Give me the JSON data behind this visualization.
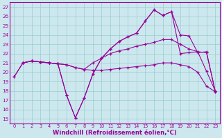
{
  "bg_color": "#cce8ee",
  "line_color": "#990099",
  "grid_color": "#99cccc",
  "xlabel": "Windchill (Refroidissement éolien,°C)",
  "ylabel_ticks": [
    15,
    16,
    17,
    18,
    19,
    20,
    21,
    22,
    23,
    24,
    25,
    26,
    27
  ],
  "xticks": [
    0,
    1,
    2,
    3,
    4,
    5,
    6,
    7,
    8,
    9,
    10,
    11,
    12,
    13,
    14,
    15,
    16,
    17,
    18,
    19,
    20,
    21,
    22,
    23
  ],
  "xlim": [
    -0.5,
    23.5
  ],
  "ylim": [
    14.5,
    27.5
  ],
  "lines": [
    {
      "x": [
        0,
        1,
        2,
        3,
        4,
        5,
        6,
        7,
        8,
        9,
        10,
        11,
        12,
        13,
        14,
        15,
        16,
        17,
        18,
        19,
        20,
        21,
        22,
        23
      ],
      "y": [
        19.5,
        21.0,
        21.2,
        21.1,
        21.0,
        20.9,
        20.8,
        20.5,
        20.3,
        20.2,
        20.2,
        20.3,
        20.4,
        20.5,
        20.6,
        20.7,
        20.8,
        21.0,
        21.0,
        20.8,
        20.6,
        20.0,
        18.5,
        17.9
      ]
    },
    {
      "x": [
        1,
        2,
        3,
        4,
        5,
        6,
        7,
        8,
        9,
        10,
        11,
        12,
        13,
        14,
        15,
        16,
        17,
        18,
        19,
        20,
        21,
        22,
        23
      ],
      "y": [
        21.0,
        21.2,
        21.1,
        21.0,
        20.9,
        20.8,
        20.5,
        20.3,
        21.0,
        21.5,
        22.0,
        22.3,
        22.5,
        22.8,
        23.0,
        23.2,
        23.5,
        23.5,
        23.0,
        22.5,
        22.2,
        22.1,
        18.0
      ]
    },
    {
      "x": [
        1,
        2,
        3,
        4,
        5,
        6,
        7,
        8,
        9,
        10,
        11,
        12,
        13,
        14,
        15,
        16,
        17,
        18,
        19,
        20,
        21,
        22,
        23
      ],
      "y": [
        21.0,
        21.2,
        21.1,
        21.0,
        20.9,
        17.5,
        15.1,
        17.2,
        19.8,
        21.5,
        22.5,
        23.3,
        23.8,
        24.2,
        25.5,
        26.7,
        26.1,
        26.5,
        24.0,
        23.9,
        22.1,
        22.2,
        17.9
      ]
    },
    {
      "x": [
        0,
        1,
        2,
        3,
        4,
        5,
        6,
        7,
        8,
        9,
        10,
        11,
        12,
        13,
        14,
        15,
        16,
        17,
        18,
        19,
        20,
        21,
        22,
        23
      ],
      "y": [
        19.5,
        21.0,
        21.2,
        21.1,
        21.0,
        20.9,
        17.5,
        15.1,
        17.2,
        19.8,
        21.5,
        22.5,
        23.3,
        23.8,
        24.2,
        25.5,
        26.7,
        26.1,
        26.5,
        22.0,
        22.1,
        22.2,
        20.1,
        18.0
      ]
    }
  ]
}
